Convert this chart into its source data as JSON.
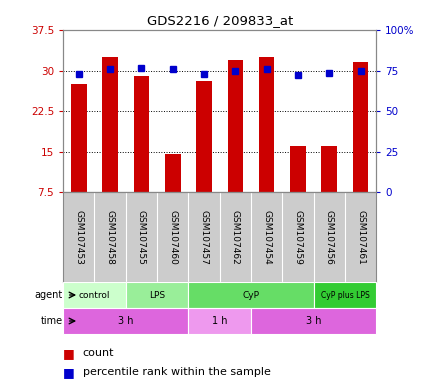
{
  "title": "GDS2216 / 209833_at",
  "samples": [
    "GSM107453",
    "GSM107458",
    "GSM107455",
    "GSM107460",
    "GSM107457",
    "GSM107462",
    "GSM107454",
    "GSM107459",
    "GSM107456",
    "GSM107461"
  ],
  "counts": [
    27.5,
    32.5,
    29.0,
    14.5,
    28.0,
    32.0,
    32.5,
    16.0,
    16.0,
    31.5
  ],
  "percentiles": [
    73,
    76,
    76.5,
    76,
    73,
    75,
    76,
    72,
    73.5,
    75
  ],
  "ylim_left": [
    7.5,
    37.5
  ],
  "ylim_right": [
    0,
    100
  ],
  "yticks_left": [
    7.5,
    15,
    22.5,
    30,
    37.5
  ],
  "yticks_right": [
    0,
    25,
    50,
    75,
    100
  ],
  "ytick_labels_left": [
    "7.5",
    "15",
    "22.5",
    "30",
    "37.5"
  ],
  "ytick_labels_right": [
    "0",
    "25",
    "50",
    "75",
    "100%"
  ],
  "bar_color": "#cc0000",
  "dot_color": "#0000cc",
  "agent_groups": [
    {
      "label": "control",
      "start": 0,
      "end": 2,
      "color": "#ccffcc"
    },
    {
      "label": "LPS",
      "start": 2,
      "end": 4,
      "color": "#99ee99"
    },
    {
      "label": "CyP",
      "start": 4,
      "end": 8,
      "color": "#66dd66"
    },
    {
      "label": "CyP plus LPS",
      "start": 8,
      "end": 10,
      "color": "#33cc33"
    }
  ],
  "time_groups": [
    {
      "label": "3 h",
      "start": 0,
      "end": 4,
      "color": "#dd66dd"
    },
    {
      "label": "1 h",
      "start": 4,
      "end": 6,
      "color": "#ee99ee"
    },
    {
      "label": "3 h",
      "start": 6,
      "end": 10,
      "color": "#dd66dd"
    }
  ],
  "left_axis_color": "#cc0000",
  "right_axis_color": "#0000cc",
  "grid_color": "#000000",
  "background_color": "#ffffff",
  "plot_bg_color": "#ffffff",
  "sample_bg_color": "#cccccc"
}
